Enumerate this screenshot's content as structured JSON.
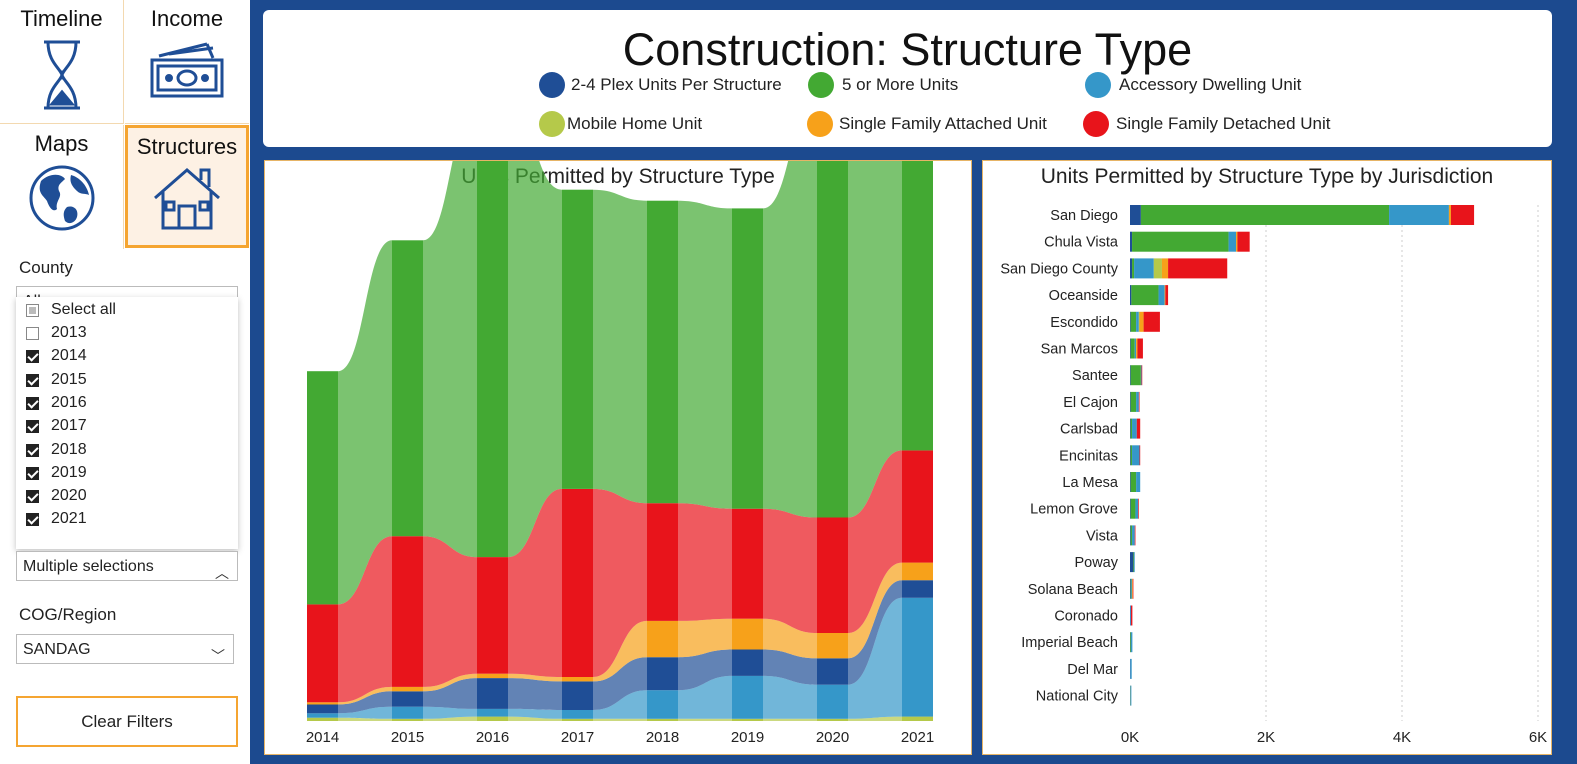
{
  "nav": {
    "timeline_label": "Timeline",
    "income_label": "Income",
    "maps_label": "Maps",
    "structures_label": "Structures"
  },
  "filters": {
    "county_label": "County",
    "county_value": "All",
    "years": [
      {
        "label": "Select all",
        "state": "partial"
      },
      {
        "label": "2013",
        "state": "off"
      },
      {
        "label": "2014",
        "state": "on"
      },
      {
        "label": "2015",
        "state": "on"
      },
      {
        "label": "2016",
        "state": "on"
      },
      {
        "label": "2017",
        "state": "on"
      },
      {
        "label": "2018",
        "state": "on"
      },
      {
        "label": "2019",
        "state": "on"
      },
      {
        "label": "2020",
        "state": "on"
      },
      {
        "label": "2021",
        "state": "on"
      }
    ],
    "year_selection_value": "Multiple selections",
    "region_label": "COG/Region",
    "region_value": "SANDAG",
    "clear_label": "Clear Filters"
  },
  "header": {
    "title": "Construction: Structure Type",
    "legend": [
      {
        "name": "2-4 Plex Units Per Structure",
        "color": "#1f4e96"
      },
      {
        "name": "5 or More Units",
        "color": "#43a933"
      },
      {
        "name": "Accessory Dwelling Unit",
        "color": "#3597c9"
      },
      {
        "name": "Mobile Home Unit",
        "color": "#b5c94a"
      },
      {
        "name": "Single Family Attached Unit",
        "color": "#f7a11a"
      },
      {
        "name": "Single Family Detached Unit",
        "color": "#e8141b"
      }
    ]
  },
  "chart_data": [
    {
      "type": "area",
      "title": "Units Permitted by Structure Type",
      "categories": [
        "2014",
        "2015",
        "2016",
        "2017",
        "2018",
        "2019",
        "2020",
        "2021"
      ],
      "series": [
        {
          "name": "Mobile Home Unit",
          "color": "#b5c94a",
          "values": [
            30,
            20,
            40,
            20,
            20,
            20,
            20,
            40
          ]
        },
        {
          "name": "Accessory Dwelling Unit",
          "color": "#3597c9",
          "values": [
            40,
            110,
            70,
            80,
            260,
            390,
            310,
            1080
          ]
        },
        {
          "name": "2-4 Plex Units Per Structure",
          "color": "#1f4e96",
          "values": [
            80,
            140,
            280,
            260,
            300,
            240,
            240,
            160
          ]
        },
        {
          "name": "Single Family Attached Unit",
          "color": "#f7a11a",
          "values": [
            20,
            40,
            40,
            40,
            330,
            280,
            230,
            160
          ]
        },
        {
          "name": "Single Family Detached Unit",
          "color": "#e8141b",
          "values": [
            890,
            1370,
            1060,
            1710,
            1070,
            1000,
            1050,
            1020
          ]
        },
        {
          "name": "5 or More Units",
          "color": "#43a933",
          "values": [
            2120,
            2690,
            4090,
            2720,
            2750,
            2730,
            3810,
            3000
          ]
        }
      ]
    },
    {
      "type": "bar",
      "title": "Units Permitted by Structure Type by Jurisdiction",
      "orientation": "horizontal-stacked",
      "categories": [
        "San Diego",
        "Chula Vista",
        "San Diego County",
        "Oceanside",
        "Escondido",
        "San Marcos",
        "Santee",
        "El Cajon",
        "Carlsbad",
        "Encinitas",
        "La Mesa",
        "Lemon Grove",
        "Vista",
        "Poway",
        "Solana Beach",
        "Coronado",
        "Imperial Beach",
        "Del Mar",
        "National City"
      ],
      "xticks": [
        "0K",
        "2K",
        "4K",
        "6K"
      ],
      "xlim": [
        0,
        6000
      ],
      "series": [
        {
          "name": "2-4 Plex Units Per Structure",
          "color": "#1f4e96",
          "values": [
            160,
            30,
            30,
            20,
            10,
            10,
            10,
            10,
            10,
            10,
            10,
            10,
            10,
            50,
            10,
            5,
            5,
            5,
            5
          ]
        },
        {
          "name": "5 or More Units",
          "color": "#43a933",
          "values": [
            3650,
            1420,
            30,
            400,
            80,
            60,
            150,
            80,
            20,
            20,
            80,
            70,
            20,
            10,
            10,
            0,
            10,
            0,
            5
          ]
        },
        {
          "name": "Accessory Dwelling Unit",
          "color": "#3597c9",
          "values": [
            880,
            110,
            290,
            90,
            40,
            20,
            10,
            40,
            70,
            110,
            60,
            40,
            40,
            10,
            10,
            10,
            20,
            20,
            10
          ]
        },
        {
          "name": "Mobile Home Unit",
          "color": "#b5c94a",
          "values": [
            0,
            0,
            120,
            0,
            10,
            0,
            0,
            0,
            0,
            0,
            0,
            0,
            0,
            0,
            0,
            0,
            0,
            0,
            0
          ]
        },
        {
          "name": "Single Family Attached Unit",
          "color": "#f7a11a",
          "values": [
            30,
            20,
            90,
            10,
            60,
            20,
            0,
            0,
            0,
            0,
            0,
            0,
            0,
            0,
            10,
            0,
            0,
            0,
            0
          ]
        },
        {
          "name": "Single Family Detached Unit",
          "color": "#e8141b",
          "values": [
            340,
            180,
            870,
            40,
            240,
            80,
            10,
            10,
            50,
            10,
            0,
            10,
            10,
            0,
            10,
            20,
            0,
            0,
            0
          ]
        }
      ]
    }
  ]
}
